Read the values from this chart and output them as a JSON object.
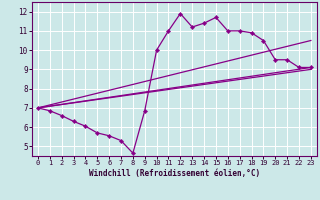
{
  "xlabel": "Windchill (Refroidissement éolien,°C)",
  "xlim": [
    -0.5,
    23.5
  ],
  "ylim": [
    4.5,
    12.5
  ],
  "yticks": [
    5,
    6,
    7,
    8,
    9,
    10,
    11,
    12
  ],
  "xticks": [
    0,
    1,
    2,
    3,
    4,
    5,
    6,
    7,
    8,
    9,
    10,
    11,
    12,
    13,
    14,
    15,
    16,
    17,
    18,
    19,
    20,
    21,
    22,
    23
  ],
  "bg_color": "#cce8e8",
  "line_color": "#880088",
  "grid_color": "#ffffff",
  "main_x": [
    0,
    1,
    2,
    3,
    4,
    5,
    6,
    7,
    8,
    9,
    10,
    11,
    12,
    13,
    14,
    15,
    16,
    17,
    18,
    19,
    20,
    21,
    22,
    23
  ],
  "main_y": [
    7.0,
    6.85,
    6.6,
    6.3,
    6.05,
    5.7,
    5.55,
    5.3,
    4.65,
    6.85,
    10.0,
    11.0,
    11.9,
    11.2,
    11.4,
    11.7,
    11.0,
    11.0,
    10.9,
    10.5,
    9.5,
    9.5,
    9.1,
    9.1
  ],
  "line2_x": [
    0,
    23
  ],
  "line2_y": [
    7.0,
    10.5
  ],
  "line3_x": [
    0,
    23
  ],
  "line3_y": [
    7.0,
    9.1
  ],
  "line4_x": [
    0,
    23
  ],
  "line4_y": [
    7.0,
    9.0
  ]
}
